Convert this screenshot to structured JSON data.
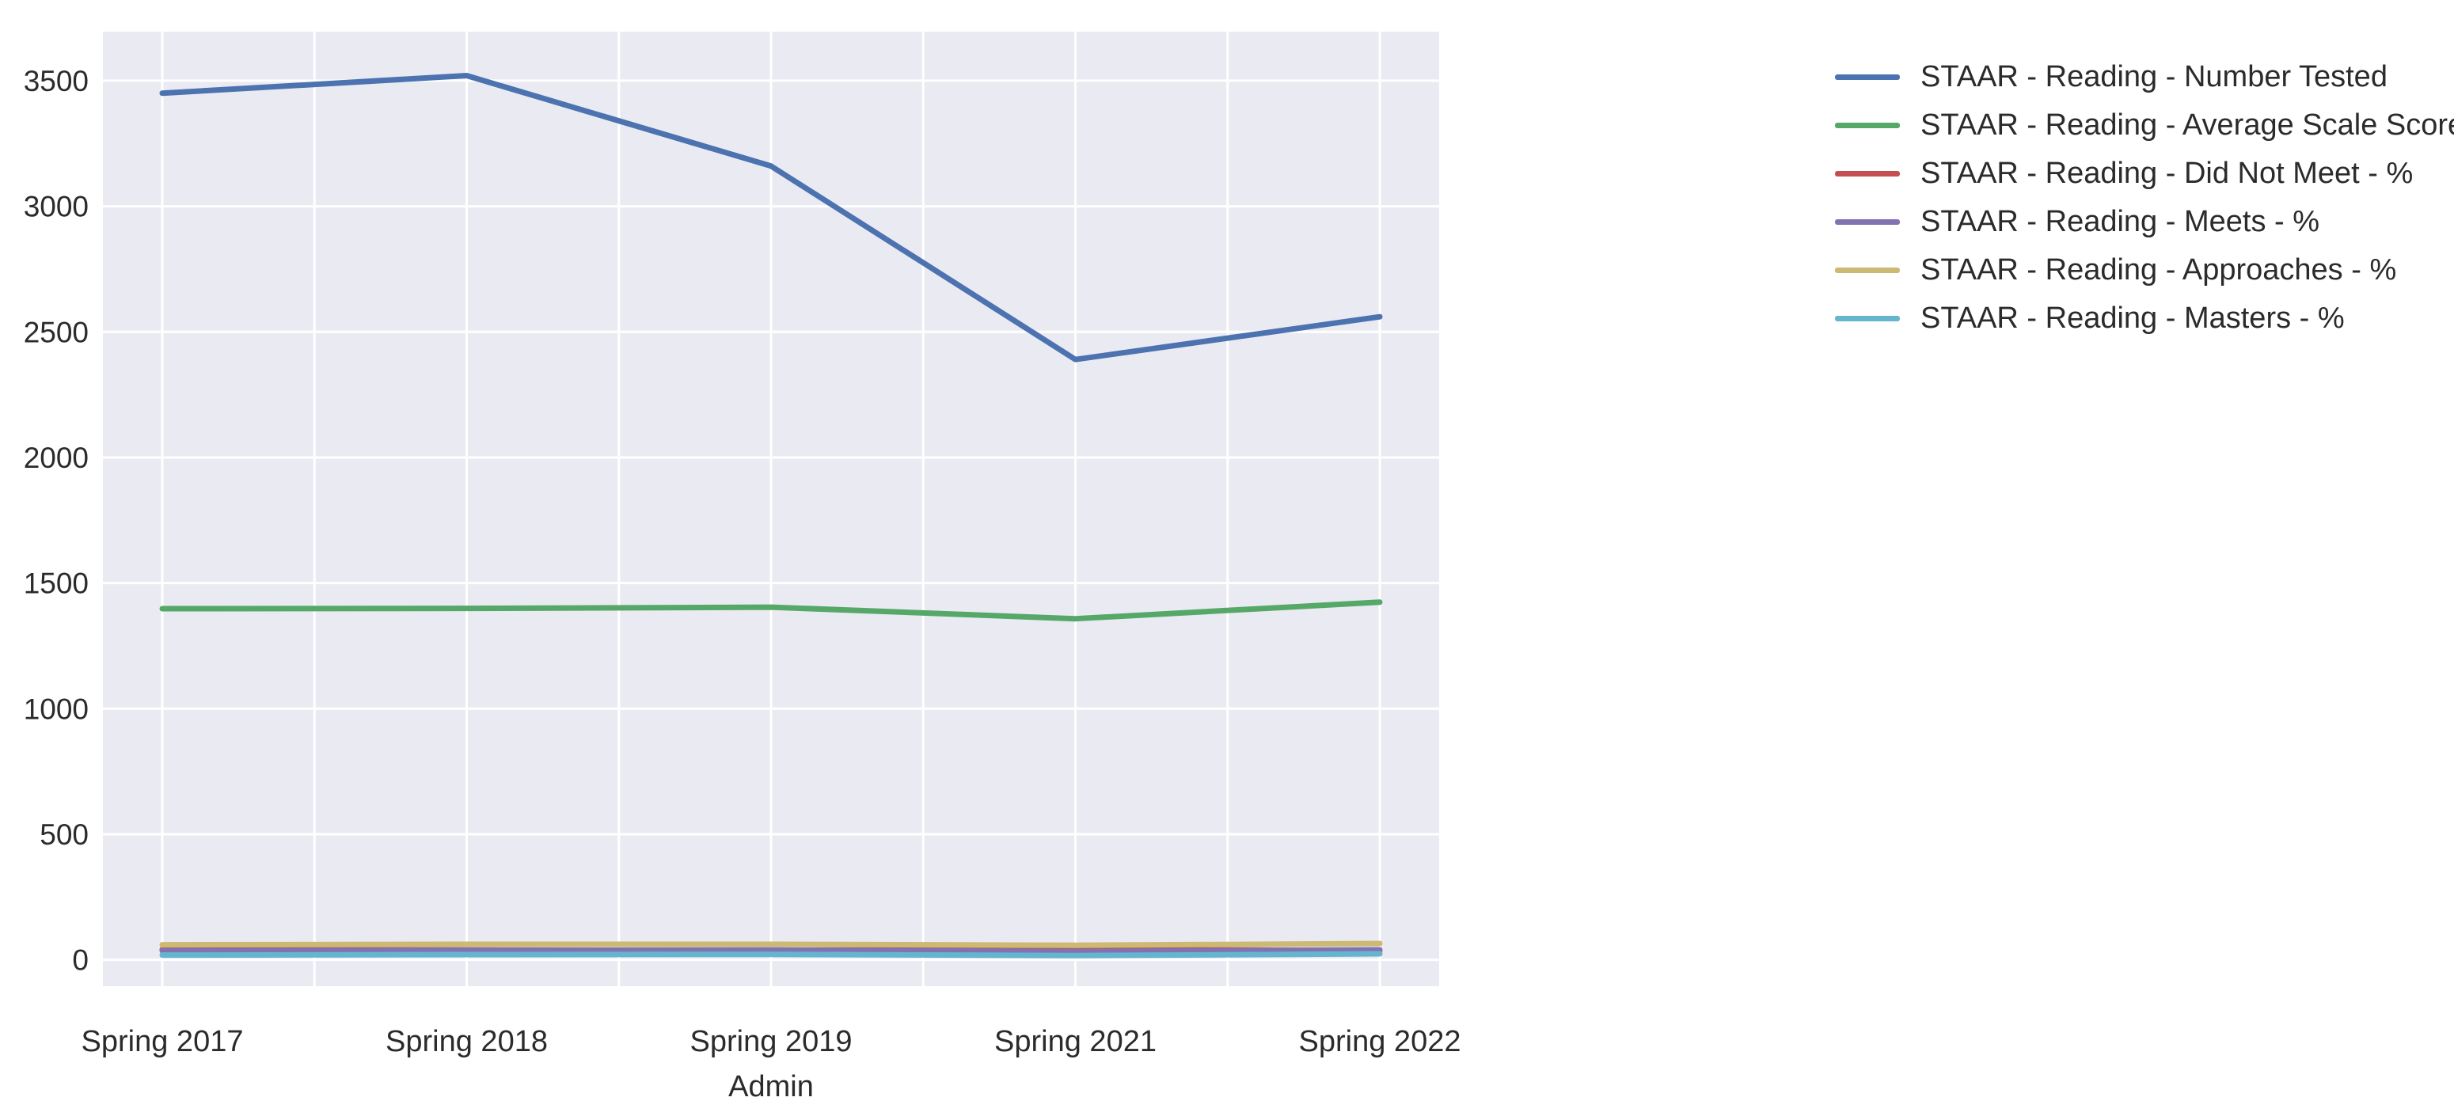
{
  "figure": {
    "background": "#ffffff",
    "plot_background": "#eaeaf2",
    "grid_color": "#ffffff",
    "text_color": "#2b2b2b"
  },
  "chart_data": {
    "type": "line",
    "title": "",
    "xlabel": "Admin",
    "ylabel": "",
    "categories": [
      "Spring 2017",
      "Spring 2018",
      "Spring 2019",
      "Spring 2021",
      "Spring 2022"
    ],
    "yticks": [
      0,
      500,
      1000,
      1500,
      2000,
      2500,
      3000,
      3500
    ],
    "ylim": [
      -105,
      3695
    ],
    "grid": true,
    "legend_position": "right",
    "series": [
      {
        "name": "STAAR - Reading - Number Tested",
        "color": "#4c72b0",
        "values": [
          3450,
          3520,
          3160,
          2390,
          2560
        ]
      },
      {
        "name": "STAAR - Reading - Average Scale Score",
        "color": "#55a868",
        "values": [
          1398,
          1399,
          1404,
          1358,
          1424
        ]
      },
      {
        "name": "STAAR - Reading - Did Not Meet - %",
        "color": "#c44e52",
        "values": [
          41,
          39,
          38,
          43,
          36
        ]
      },
      {
        "name": "STAAR - Reading - Meets - %",
        "color": "#8172b2",
        "values": [
          36,
          38,
          39,
          33,
          40
        ]
      },
      {
        "name": "STAAR - Reading - Approaches - %",
        "color": "#ccb974",
        "values": [
          60,
          62,
          62,
          58,
          65
        ]
      },
      {
        "name": "STAAR - Reading - Masters - %",
        "color": "#64b5cd",
        "values": [
          19,
          21,
          22,
          17,
          24
        ]
      }
    ]
  }
}
